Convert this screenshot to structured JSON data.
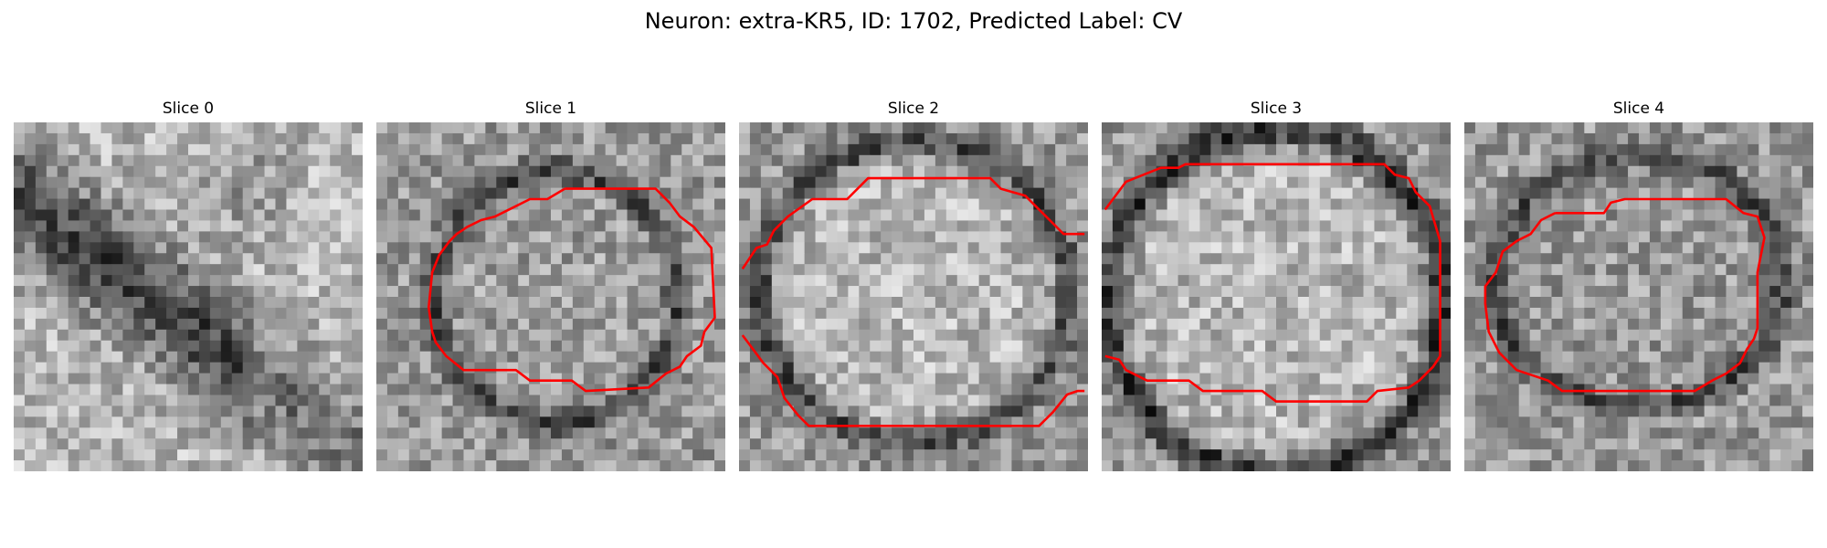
{
  "figure": {
    "title": "Neuron: extra-KR5, ID: 1702, Predicted Label: CV"
  },
  "colors": {
    "contour": "#ff0000",
    "background": "#ffffff"
  },
  "panels": [
    {
      "label": "Slice 0"
    },
    {
      "label": "Slice 1"
    },
    {
      "label": "Slice 2"
    },
    {
      "label": "Slice 3"
    },
    {
      "label": "Slice 4"
    }
  ]
}
